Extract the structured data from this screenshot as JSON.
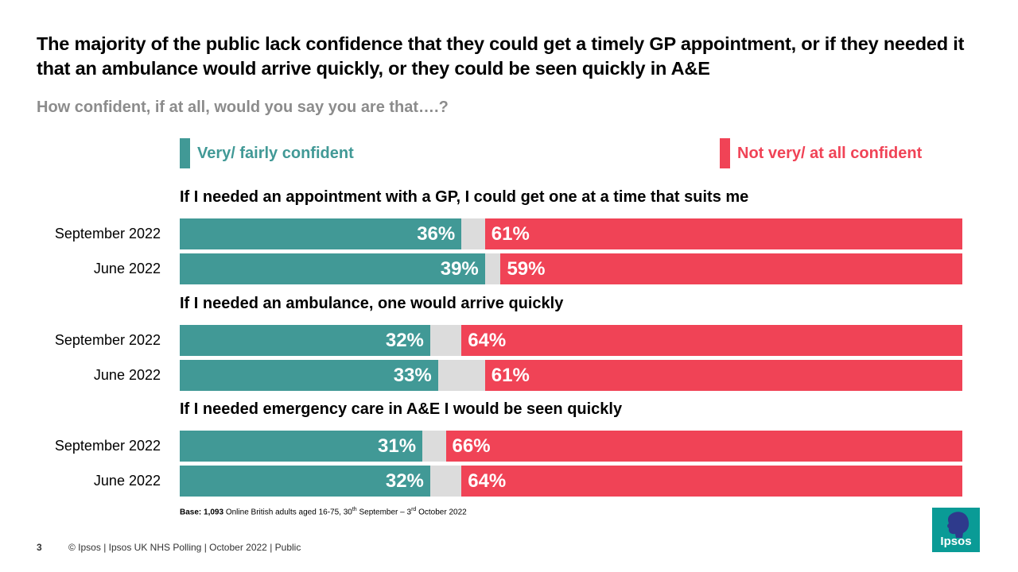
{
  "title": "The majority of the public lack confidence that they could get a timely GP appointment, or if they needed it that an ambulance would arrive quickly, or they could be seen quickly in A&E",
  "subtitle": "How confident, if at all, would you say you are that….?",
  "legend": {
    "confident": "Very/ fairly confident",
    "not_confident": "Not very/ at all confident"
  },
  "colors": {
    "confident": "#419996",
    "not_confident": "#f04356",
    "neutral": "#dcdcdc",
    "logo": "#0a9b96"
  },
  "chart_data": {
    "type": "bar",
    "orientation": "horizontal-stacked",
    "series_names": [
      "Very/ fairly confident",
      "Not very/ at all confident"
    ],
    "groups": [
      {
        "question": "If I needed an appointment with a GP, I could get one at a time that suits me",
        "rows": [
          {
            "label": "September 2022",
            "confident": 36,
            "not_confident": 61,
            "confident_label": "36%",
            "not_confident_label": "61%"
          },
          {
            "label": "June 2022",
            "confident": 39,
            "not_confident": 59,
            "confident_label": "39%",
            "not_confident_label": "59%"
          }
        ]
      },
      {
        "question": "If I needed an ambulance, one would arrive quickly",
        "rows": [
          {
            "label": "September 2022",
            "confident": 32,
            "not_confident": 64,
            "confident_label": "32%",
            "not_confident_label": "64%"
          },
          {
            "label": "June 2022",
            "confident": 33,
            "not_confident": 61,
            "confident_label": "33%",
            "not_confident_label": "61%"
          }
        ]
      },
      {
        "question": "If I needed emergency care in A&E I would be seen quickly",
        "rows": [
          {
            "label": "September 2022",
            "confident": 31,
            "not_confident": 66,
            "confident_label": "31%",
            "not_confident_label": "66%"
          },
          {
            "label": "June 2022",
            "confident": 32,
            "not_confident": 64,
            "confident_label": "32%",
            "not_confident_label": "64%"
          }
        ]
      }
    ]
  },
  "base_note": {
    "prefix": "Base:",
    "count": "1,093",
    "text1": "Online British adults aged 16-75, 30",
    "sup1": "th",
    "text2": "September – 3",
    "sup2": "rd",
    "text3": "October 2022"
  },
  "footer": {
    "page_number": "3",
    "text": "© Ipsos | Ipsos UK NHS Polling | October 2022 | Public"
  },
  "logo": {
    "text": "Ipsos"
  }
}
